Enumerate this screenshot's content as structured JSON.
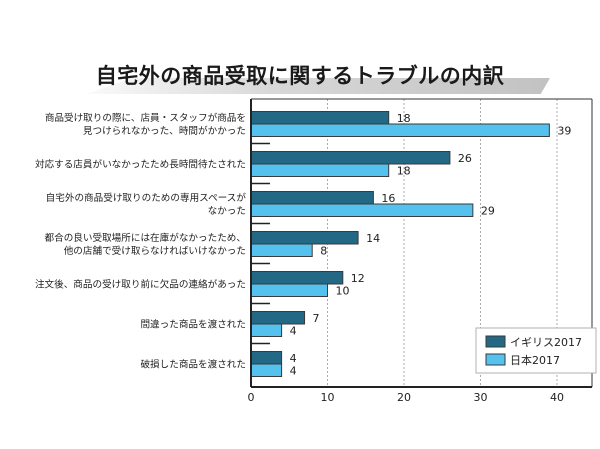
{
  "chart_data": {
    "type": "bar",
    "orientation": "horizontal",
    "title": "自宅外の商品受取に関するトラブルの内訳",
    "categories": [
      [
        "商品受け取りの際に、店員・スタッフが商品を",
        "見つけられなかった、時間がかかった"
      ],
      [
        "対応する店員がいなかったため長時間待たされた"
      ],
      [
        "自宅外の商品受け取りのための専用スペースが",
        "なかった"
      ],
      [
        "都合の良い受取場所には在庫がなかったため、",
        "他の店舗で受け取らなければいけなかった"
      ],
      [
        "注文後、商品の受け取り前に欠品の連絡があった"
      ],
      [
        "間違った商品を渡された"
      ],
      [
        "破損した商品を渡された"
      ]
    ],
    "series": [
      {
        "name": "イギリス2017",
        "color": "#236884",
        "values": [
          18,
          26,
          16,
          14,
          12,
          7,
          4
        ]
      },
      {
        "name": "日本2017",
        "color": "#55c1ef",
        "values": [
          39,
          18,
          29,
          8,
          10,
          4,
          4
        ]
      }
    ],
    "xticks": [
      "0",
      "10",
      "20",
      "30",
      "40"
    ],
    "xlim": [
      0,
      44.5
    ],
    "grid": "x-dashed",
    "legend_position": "bottom-right",
    "xlabel": "",
    "ylabel": ""
  }
}
